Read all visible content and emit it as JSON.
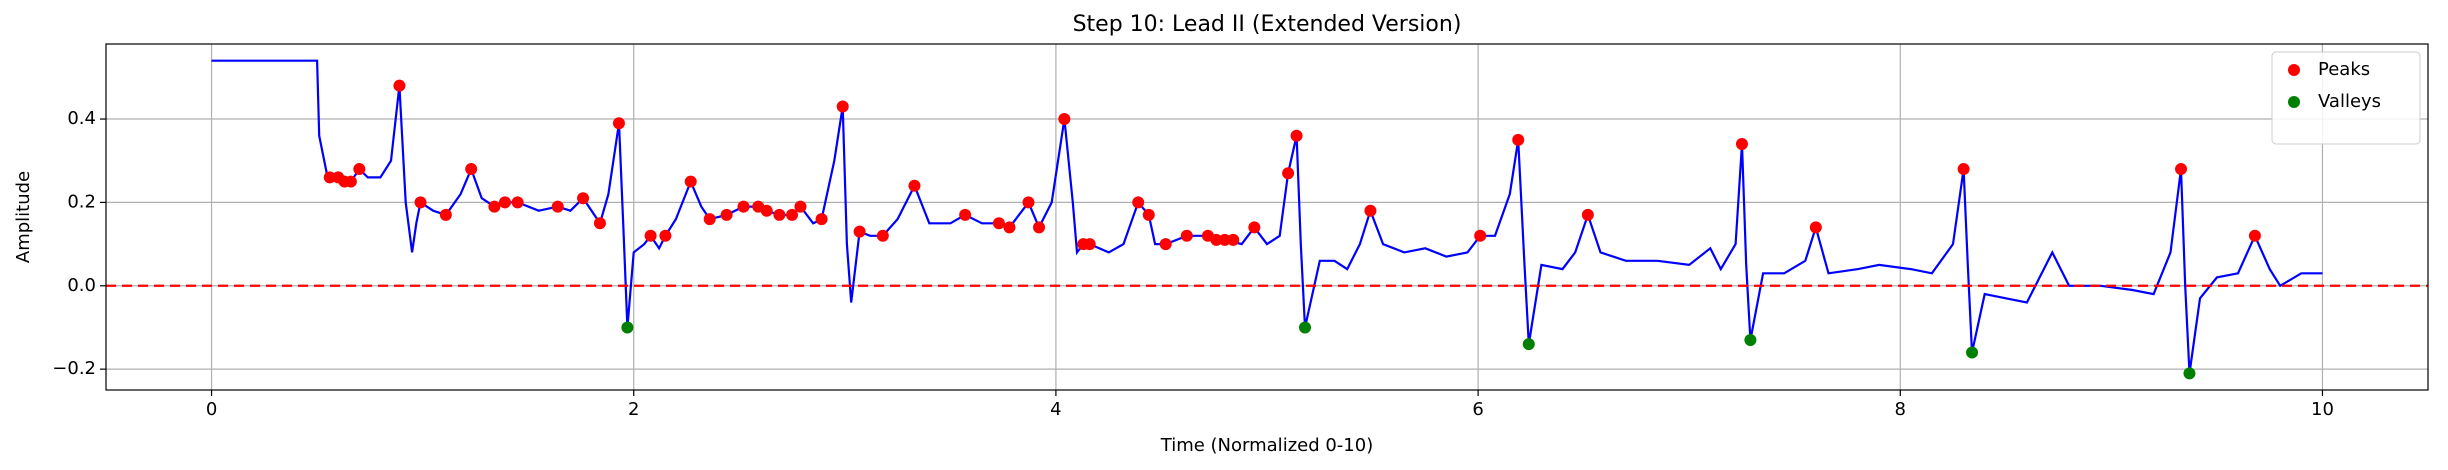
{
  "chart_data": {
    "type": "line",
    "title": "Step 10: Lead II (Extended Version)",
    "xlabel": "Time (Normalized 0-10)",
    "ylabel": "Amplitude",
    "xlim": [
      -0.5,
      10.5
    ],
    "ylim": [
      -0.25,
      0.58
    ],
    "xticks": [
      0,
      2,
      4,
      6,
      8,
      10
    ],
    "yticks": [
      {
        "value": -0.2,
        "label": "−0.2"
      },
      {
        "value": 0,
        "label": "0.0"
      },
      0.2,
      0.4
    ],
    "grid": true,
    "legend": "upper right",
    "reference_line": {
      "value": 0,
      "color": "red"
    },
    "signal": {
      "color": "blue",
      "x": [
        0,
        0.5,
        0.51,
        0.55,
        0.6,
        0.66,
        0.7,
        0.74,
        0.8,
        0.85,
        0.89,
        0.92,
        0.95,
        0.97,
        0.99,
        1.05,
        1.11,
        1.18,
        1.23,
        1.28,
        1.34,
        1.39,
        1.45,
        1.55,
        1.64,
        1.7,
        1.76,
        1.84,
        1.88,
        1.93,
        1.95,
        1.97,
        2.0,
        2.05,
        2.08,
        2.12,
        2.15,
        2.2,
        2.27,
        2.32,
        2.36,
        2.44,
        2.52,
        2.59,
        2.63,
        2.69,
        2.75,
        2.79,
        2.85,
        2.89,
        2.95,
        2.99,
        3.01,
        3.03,
        3.07,
        3.12,
        3.18,
        3.25,
        3.33,
        3.4,
        3.5,
        3.57,
        3.65,
        3.73,
        3.78,
        3.87,
        3.92,
        3.98,
        4.04,
        4.08,
        4.1,
        4.13,
        4.16,
        4.25,
        4.32,
        4.39,
        4.44,
        4.47,
        4.52,
        4.62,
        4.72,
        4.8,
        4.88,
        4.94,
        5.0,
        5.06,
        5.1,
        5.14,
        5.16,
        5.18,
        5.25,
        5.32,
        5.38,
        5.44,
        5.49,
        5.55,
        5.65,
        5.75,
        5.85,
        5.95,
        6.01,
        6.08,
        6.15,
        6.19,
        6.22,
        6.24,
        6.3,
        6.4,
        6.46,
        6.52,
        6.58,
        6.7,
        6.85,
        7.0,
        7.1,
        7.15,
        7.22,
        7.25,
        7.27,
        7.29,
        7.35,
        7.45,
        7.55,
        7.6,
        7.66,
        7.8,
        7.9,
        8.05,
        8.15,
        8.25,
        8.3,
        8.32,
        8.34,
        8.4,
        8.5,
        8.6,
        8.72,
        8.8,
        8.95,
        9.1,
        9.2,
        9.28,
        9.33,
        9.35,
        9.37,
        9.42,
        9.5,
        9.6,
        9.68,
        9.75,
        9.8,
        9.9,
        10.0
      ],
      "values": [
        0.54,
        0.54,
        0.36,
        0.26,
        0.26,
        0.25,
        0.28,
        0.26,
        0.26,
        0.3,
        0.48,
        0.2,
        0.08,
        0.15,
        0.2,
        0.18,
        0.17,
        0.22,
        0.28,
        0.21,
        0.19,
        0.2,
        0.2,
        0.18,
        0.19,
        0.18,
        0.21,
        0.15,
        0.22,
        0.39,
        0.15,
        -0.1,
        0.08,
        0.1,
        0.12,
        0.09,
        0.12,
        0.16,
        0.25,
        0.19,
        0.16,
        0.17,
        0.19,
        0.19,
        0.18,
        0.17,
        0.17,
        0.19,
        0.15,
        0.16,
        0.3,
        0.43,
        0.1,
        -0.04,
        0.13,
        0.12,
        0.12,
        0.16,
        0.24,
        0.15,
        0.15,
        0.17,
        0.15,
        0.15,
        0.14,
        0.2,
        0.14,
        0.2,
        0.4,
        0.2,
        0.08,
        0.1,
        0.1,
        0.08,
        0.1,
        0.2,
        0.17,
        0.1,
        0.1,
        0.12,
        0.12,
        0.11,
        0.1,
        0.14,
        0.1,
        0.12,
        0.27,
        0.36,
        0.1,
        -0.1,
        0.06,
        0.06,
        0.04,
        0.1,
        0.18,
        0.1,
        0.08,
        0.09,
        0.07,
        0.08,
        0.12,
        0.12,
        0.22,
        0.35,
        0.05,
        -0.14,
        0.05,
        0.04,
        0.08,
        0.17,
        0.08,
        0.06,
        0.06,
        0.05,
        0.09,
        0.04,
        0.1,
        0.34,
        0.05,
        -0.13,
        0.03,
        0.03,
        0.06,
        0.14,
        0.03,
        0.04,
        0.05,
        0.04,
        0.03,
        0.1,
        0.28,
        0.05,
        -0.16,
        -0.02,
        -0.03,
        -0.04,
        0.08,
        0.0,
        0.0,
        -0.01,
        -0.02,
        0.08,
        0.28,
        0.0,
        -0.21,
        -0.03,
        0.02,
        0.03,
        0.12,
        0.04,
        0.0,
        0.03,
        0.03
      ]
    },
    "series": [
      {
        "name": "Peaks",
        "color": "red",
        "x": [
          0.56,
          0.6,
          0.63,
          0.66,
          0.7,
          0.89,
          0.99,
          1.11,
          1.23,
          1.34,
          1.39,
          1.45,
          1.64,
          1.76,
          1.84,
          1.93,
          2.08,
          2.15,
          2.27,
          2.36,
          2.44,
          2.52,
          2.59,
          2.63,
          2.69,
          2.75,
          2.79,
          2.89,
          2.99,
          3.07,
          3.18,
          3.33,
          3.57,
          3.73,
          3.78,
          3.87,
          3.92,
          4.04,
          4.13,
          4.16,
          4.39,
          4.44,
          4.52,
          4.62,
          4.72,
          4.76,
          4.8,
          4.84,
          4.94,
          5.1,
          5.14,
          5.49,
          6.01,
          6.19,
          6.52,
          7.25,
          7.6,
          8.3,
          9.33,
          9.68
        ],
        "values": [
          0.26,
          0.26,
          0.25,
          0.25,
          0.28,
          0.48,
          0.2,
          0.17,
          0.28,
          0.19,
          0.2,
          0.2,
          0.19,
          0.21,
          0.15,
          0.39,
          0.12,
          0.12,
          0.25,
          0.16,
          0.17,
          0.19,
          0.19,
          0.18,
          0.17,
          0.17,
          0.19,
          0.16,
          0.43,
          0.13,
          0.12,
          0.24,
          0.17,
          0.15,
          0.14,
          0.2,
          0.14,
          0.4,
          0.1,
          0.1,
          0.2,
          0.17,
          0.1,
          0.12,
          0.12,
          0.11,
          0.11,
          0.11,
          0.14,
          0.27,
          0.36,
          0.18,
          0.12,
          0.35,
          0.17,
          0.34,
          0.14,
          0.28,
          0.28,
          0.12
        ]
      },
      {
        "name": "Valleys",
        "color": "green",
        "x": [
          1.97,
          5.18,
          6.24,
          7.29,
          8.34,
          9.37
        ],
        "values": [
          -0.1,
          -0.1,
          -0.14,
          -0.13,
          -0.16,
          -0.21
        ]
      }
    ]
  }
}
